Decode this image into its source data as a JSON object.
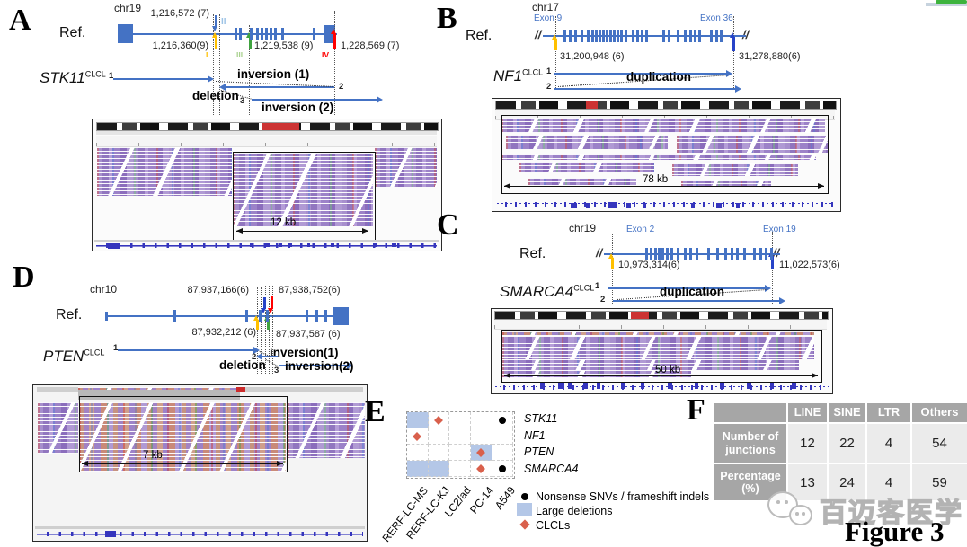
{
  "figure_label": "Figure 3",
  "watermark": {
    "text": "百迈客医学"
  },
  "panelA": {
    "label": "A",
    "chrom": "chr19",
    "ref": "Ref.",
    "bp_top": "1,216,572 (7)",
    "bp_left": "1,216,360(9)",
    "bp_mid": "1,219,538 (9)",
    "bp_right": "1,228,569 (7)",
    "markers": {
      "i": "I",
      "ii": "II",
      "iii": "III",
      "iv": "IV"
    },
    "gene": "STK11",
    "gene_sup": "CLCL",
    "seg1": "1",
    "seg2": "2",
    "seg3": "3",
    "ev_inv1": "inversion (1)",
    "ev_del": "deletion",
    "ev_inv2": "inversion (2)",
    "scale": "12 kb"
  },
  "panelB": {
    "label": "B",
    "chrom": "chr17",
    "ref": "Ref.",
    "exon_left": "Exon 9",
    "exon_right": "Exon 36",
    "bp_left": "31,200,948 (6)",
    "bp_right": "31,278,880(6)",
    "gene": "NF1",
    "gene_sup": "CLCL",
    "seg1": "1",
    "seg2": "2",
    "event": "duplication",
    "scale": "78 kb"
  },
  "panelC": {
    "label": "C",
    "chrom": "chr19",
    "ref": "Ref.",
    "exon_left": "Exon 2",
    "exon_right": "Exon 19",
    "bp_left": "10,973,314(6)",
    "bp_right": "11,022,573(6)",
    "gene": "SMARCA4",
    "gene_sup": "CLCL",
    "seg1": "1",
    "seg2": "2",
    "event": "duplication",
    "scale": "50 kb"
  },
  "panelD": {
    "label": "D",
    "chrom": "chr10",
    "ref": "Ref.",
    "bp_top_left": "87,937,166(6)",
    "bp_top_right": "87,938,752(6)",
    "bp_bot_left": "87,932,212 (6)",
    "bp_bot_right": "87,937,587 (6)",
    "gene": "PTEN",
    "gene_sup": "CLCL",
    "seg1": "1",
    "seg2": "2",
    "seg3": "3",
    "ev_del": "deletion",
    "ev_inv1": "inversion(1)",
    "ev_inv2": "inversion(2)",
    "scale": "7 kb"
  },
  "panelE": {
    "label": "E",
    "genes": [
      "STK11",
      "NF1",
      "PTEN",
      "SMARCA4"
    ],
    "cell_lines": [
      "RERF-LC-MS",
      "RERF-LC-KJ",
      "LC2/ad",
      "PC-14",
      "A549"
    ],
    "matrix": [
      [
        "deletion",
        "clcl",
        "",
        "",
        "nonsense"
      ],
      [
        "clcl",
        "",
        "",
        "",
        ""
      ],
      [
        "",
        "",
        "",
        "deletion+clcl",
        ""
      ],
      [
        "deletion",
        "deletion",
        "",
        "clcl",
        "nonsense"
      ]
    ],
    "legend": [
      {
        "marker": "nonsense",
        "label": "Nonsense SNVs / frameshift indels"
      },
      {
        "marker": "deletion",
        "label": "Large deletions"
      },
      {
        "marker": "clcl",
        "label": "CLCLs"
      }
    ],
    "colors": {
      "deletion": "#b4c7e7",
      "clcl": "#d9604c",
      "nonsense": "#000000"
    }
  },
  "panelF": {
    "label": "F",
    "columns": [
      "LINE",
      "SINE",
      "LTR",
      "Others"
    ],
    "rows": [
      {
        "label": "Number of junctions",
        "values": [
          "12",
          "22",
          "4",
          "54"
        ]
      },
      {
        "label": "Percentage (%)",
        "values": [
          "13",
          "24",
          "4",
          "59"
        ]
      }
    ]
  }
}
